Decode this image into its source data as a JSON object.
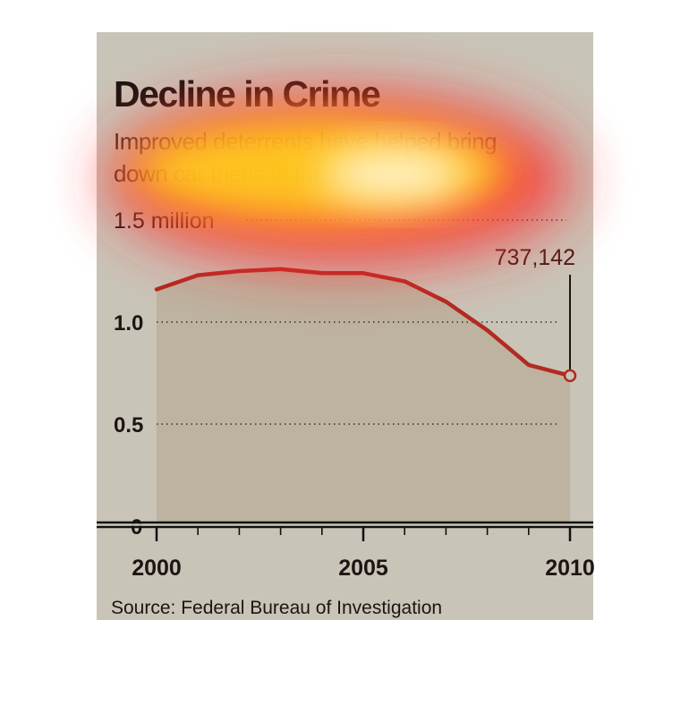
{
  "chart_data": {
    "type": "area",
    "title": "Decline in Crime",
    "subtitle": "Improved deterrents have helped bring down car thefts in the U.S.",
    "source": "Source: Federal Bureau of Investigation",
    "x": [
      2000,
      2001,
      2002,
      2003,
      2004,
      2005,
      2006,
      2007,
      2008,
      2009,
      2010
    ],
    "series": [
      {
        "name": "",
        "values": [
          1.16,
          1.23,
          1.25,
          1.26,
          1.24,
          1.24,
          1.2,
          1.1,
          0.96,
          0.79,
          0.737142
        ]
      }
    ],
    "ylim": [
      0,
      1.5
    ],
    "xlim": [
      2000,
      2010
    ],
    "y_ticks": [
      {
        "value": 1.5,
        "label": "1.5 million"
      },
      {
        "value": 1.0,
        "label": "1.0"
      },
      {
        "value": 0.5,
        "label": "0.5"
      },
      {
        "value": 0,
        "label": "0"
      }
    ],
    "x_tick_labels": [
      {
        "value": 2000,
        "label": "2000"
      },
      {
        "value": 2005,
        "label": "2005"
      },
      {
        "value": 2010,
        "label": "2010"
      }
    ],
    "annotation": {
      "x": 2010,
      "value": 0.737142,
      "label": "737,142"
    },
    "grid": true,
    "colors": {
      "background": "#c9c4b8",
      "area_fill": "#bdb3a0",
      "line": "#b32a22",
      "annotation_text": "#4a1c16",
      "text": "#1c1512"
    }
  }
}
